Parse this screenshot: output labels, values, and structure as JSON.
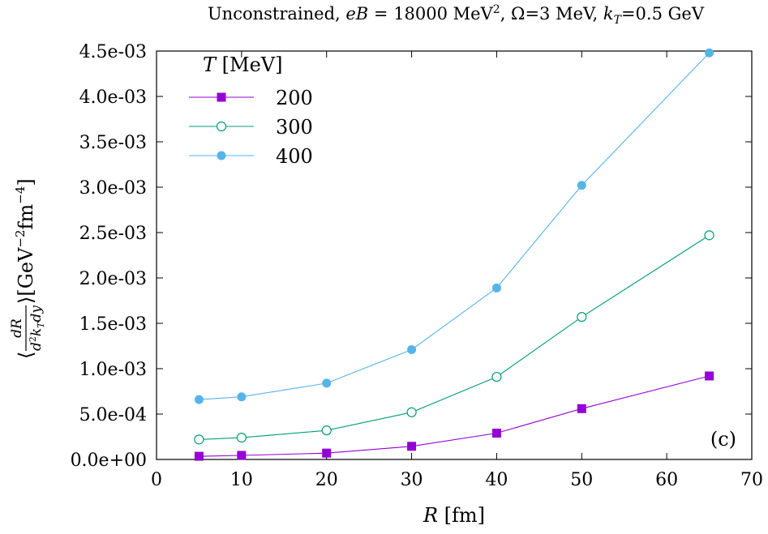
{
  "chart_data": {
    "type": "line",
    "title": "Unconstrained, eB = 18000 MeV², Ω=3 MeV, k_T=0.5 GeV",
    "title_parts": {
      "prefix": "Unconstrained, ",
      "eb_var": "eB",
      "eb_value": " = 18000 MeV",
      "eb_sup": "2",
      "omega": ", Ω=3 MeV, ",
      "kt_var": "k",
      "kt_sub": "T",
      "kt_value": "=0.5 GeV"
    },
    "xlabel": "R [fm]",
    "xlabel_parts": {
      "var": "R",
      "unit": " [fm]"
    },
    "ylabel": "⟨dR/(d²k_T dy)⟩[GeV⁻²fm⁻⁴]",
    "ylabel_parts": {
      "lbracket": "⟨",
      "num": "dR",
      "den_d": "d",
      "den_sup2": "2",
      "den_k": "k",
      "den_T": "T",
      "den_dy": "dy",
      "rbracket": "⟩[GeV",
      "exp1": "−2",
      "fm": "fm",
      "exp2": "−4",
      "end": "]"
    },
    "xlim": [
      0,
      70
    ],
    "ylim": [
      0,
      0.0045
    ],
    "x_ticks": [
      0,
      10,
      20,
      30,
      40,
      50,
      60,
      70
    ],
    "x_tick_labels": [
      "0",
      "10",
      "20",
      "30",
      "40",
      "50",
      "60",
      "70"
    ],
    "y_ticks": [
      0,
      0.0005,
      0.001,
      0.0015,
      0.002,
      0.0025,
      0.003,
      0.0035,
      0.004,
      0.0045
    ],
    "y_tick_labels": [
      "0.0e+00",
      "5.0e-04",
      "1.0e-03",
      "1.5e-03",
      "2.0e-03",
      "2.5e-03",
      "3.0e-03",
      "3.5e-03",
      "4.0e-03",
      "4.5e-03"
    ],
    "grid": false,
    "legend": {
      "placement": "top-left",
      "title_var": "T",
      "title_unit": " [MeV]"
    },
    "annotation": "(c)",
    "x": [
      5,
      10,
      20,
      30,
      40,
      50,
      65
    ],
    "series": [
      {
        "name": "200",
        "color": "#9400d3",
        "marker": "filled-square",
        "values": [
          3.5e-05,
          4.5e-05,
          7e-05,
          0.000145,
          0.00029,
          0.00056,
          0.00092
        ]
      },
      {
        "name": "300",
        "color": "#009e73",
        "marker": "open-circle",
        "values": [
          0.00022,
          0.00024,
          0.00032,
          0.00052,
          0.00091,
          0.00157,
          0.00247
        ]
      },
      {
        "name": "400",
        "color": "#56b4e9",
        "marker": "filled-circle",
        "values": [
          0.00066,
          0.00069,
          0.00084,
          0.00121,
          0.00189,
          0.00302,
          0.00448
        ]
      }
    ]
  }
}
